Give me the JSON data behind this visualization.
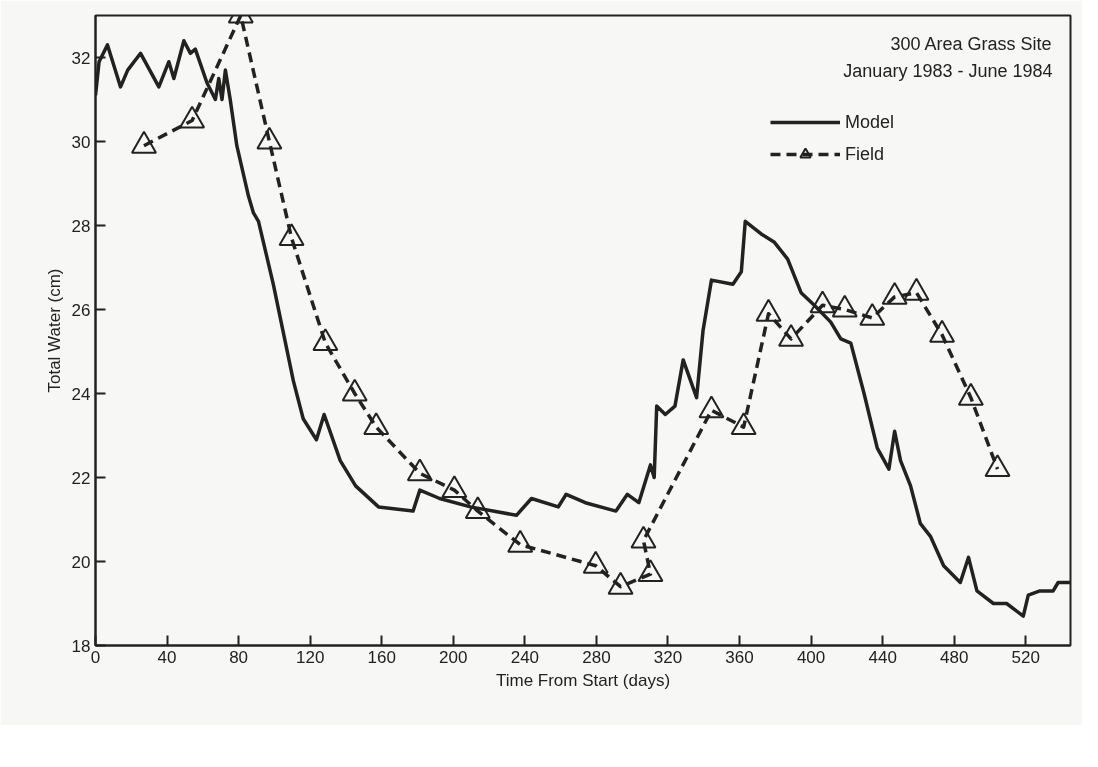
{
  "chart_data": {
    "type": "line",
    "xlabel": "Time From Start (days)",
    "ylabel": "Total Water (cm)",
    "annotations": [
      "300 Area Grass Site",
      "January 1983 - June 1984"
    ],
    "xlim": [
      0,
      545
    ],
    "xticks": [
      0,
      40,
      80,
      120,
      160,
      200,
      240,
      280,
      320,
      360,
      400,
      440,
      480,
      520
    ],
    "ylim": [
      18,
      33
    ],
    "yticks": [
      18,
      20,
      22,
      24,
      26,
      28,
      30,
      32
    ],
    "grid": false,
    "legend": "top right",
    "series": [
      {
        "name": "Model",
        "color": "#222222",
        "line_style": "solid",
        "marker": "none",
        "x": [
          0,
          2,
          6.7,
          14,
          18,
          25.2,
          35.4,
          41,
          43.8,
          49.4,
          53,
          55.8,
          62.3,
          67,
          68.9,
          70.7,
          72.6,
          75.3,
          79,
          85.5,
          88.3,
          91.1,
          99.4,
          110.6,
          116.1,
          123.5,
          127.8,
          136.8,
          145.4,
          158.2,
          177.5,
          181.3,
          192.4,
          209.6,
          235.3,
          243.7,
          258.7,
          263.1,
          273.8,
          290.9,
          297.3,
          303.7,
          310.2,
          312.3,
          313.7,
          318.5,
          323.9,
          328.5,
          336,
          339.6,
          344.3,
          356.3,
          361,
          363.2,
          372.1,
          379.5,
          386.9,
          394.4,
          401.8,
          411,
          416.6,
          422.2,
          429.6,
          437,
          443.5,
          446.7,
          450,
          455.6,
          461.1,
          466.7,
          474.1,
          483.4,
          488,
          492.7,
          501.9,
          509.3,
          518.6,
          521.4,
          527.9,
          535.3,
          538.1,
          545
        ],
        "values": [
          31.1,
          31.9,
          32.3,
          31.3,
          31.7,
          32.1,
          31.3,
          31.9,
          31.5,
          32.4,
          32.1,
          32.2,
          31.4,
          31.0,
          31.5,
          31.0,
          31.7,
          31.0,
          29.9,
          28.7,
          28.3,
          28.1,
          26.6,
          24.3,
          23.4,
          22.9,
          23.5,
          22.4,
          21.8,
          21.3,
          21.2,
          21.7,
          21.5,
          21.3,
          21.1,
          21.5,
          21.3,
          21.6,
          21.4,
          21.2,
          21.6,
          21.4,
          22.3,
          22.0,
          23.7,
          23.5,
          23.7,
          24.8,
          23.9,
          25.5,
          26.7,
          26.6,
          26.9,
          28.1,
          27.8,
          27.6,
          27.2,
          26.4,
          26.1,
          25.7,
          25.3,
          25.2,
          24.0,
          22.7,
          22.2,
          23.1,
          22.4,
          21.8,
          20.9,
          20.6,
          19.9,
          19.5,
          20.1,
          19.3,
          19.0,
          19.0,
          18.7,
          19.2,
          19.3,
          19.3,
          19.5,
          19.5
        ]
      },
      {
        "name": "Field",
        "color": "#222222",
        "line_style": "dashed",
        "marker": "triangle",
        "x": [
          27.1,
          54,
          81.2,
          97.2,
          109.6,
          128.5,
          144.9,
          156.9,
          181.3,
          200.6,
          213.7,
          237.4,
          279.6,
          293.5,
          310.2,
          306.3,
          344.3,
          362.3,
          376.2,
          388.8,
          406.4,
          418.8,
          434.2,
          446.7,
          458.9,
          473.2,
          489.3,
          504.2
        ],
        "values": [
          29.9,
          30.5,
          33.0,
          30.0,
          27.7,
          25.2,
          24.0,
          23.2,
          22.1,
          21.7,
          21.2,
          20.4,
          19.9,
          19.4,
          19.7,
          20.5,
          23.6,
          23.2,
          25.9,
          25.3,
          26.1,
          26.0,
          25.8,
          26.3,
          26.4,
          25.4,
          23.9,
          22.2
        ]
      }
    ]
  }
}
